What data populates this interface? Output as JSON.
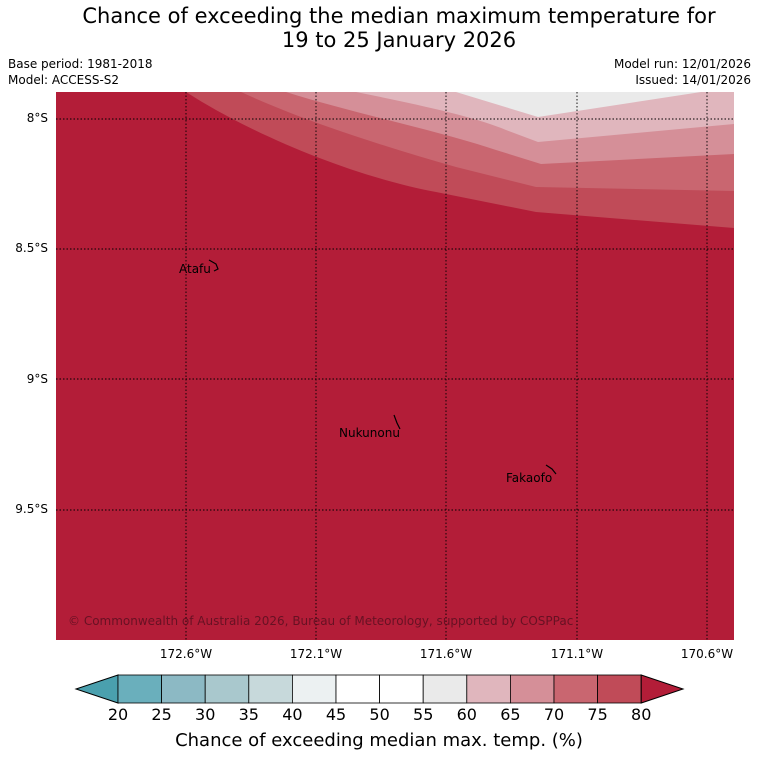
{
  "title": {
    "line1": "Chance of exceeding the median maximum temperature for",
    "line2": "19 to 25 January 2026"
  },
  "meta": {
    "base_period": "Base period: 1981-2018",
    "model": "Model: ACCESS-S2",
    "model_run": "Model run: 12/01/2026",
    "issued": "Issued: 14/01/2026"
  },
  "map": {
    "lat_labels": [
      "8°S",
      "8.5°S",
      "9°S",
      "9.5°S"
    ],
    "lon_labels": [
      "172.6°W",
      "172.1°W",
      "171.6°W",
      "171.1°W",
      "170.6°W"
    ],
    "places": [
      "Atafu",
      "Nukunonu",
      "Fakaofo"
    ],
    "copyright": "© Commonwealth of Australia 2026, Bureau of Meteorology, supported by COSPPac"
  },
  "colorbar": {
    "ticks": [
      "20",
      "25",
      "30",
      "35",
      "40",
      "45",
      "50",
      "55",
      "60",
      "65",
      "70",
      "75",
      "80"
    ],
    "label": "Chance of exceeding median max. temp. (%)",
    "colors": [
      "#4aa0ae",
      "#6aafbc",
      "#8cb9c4",
      "#a9c8cd",
      "#c7d9db",
      "#ecf1f2",
      "#ffffff",
      "#ffffff",
      "#eaeaea",
      "#e0b6bd",
      "#d58f98",
      "#c96670",
      "#c04b58",
      "#b31d38"
    ]
  }
}
